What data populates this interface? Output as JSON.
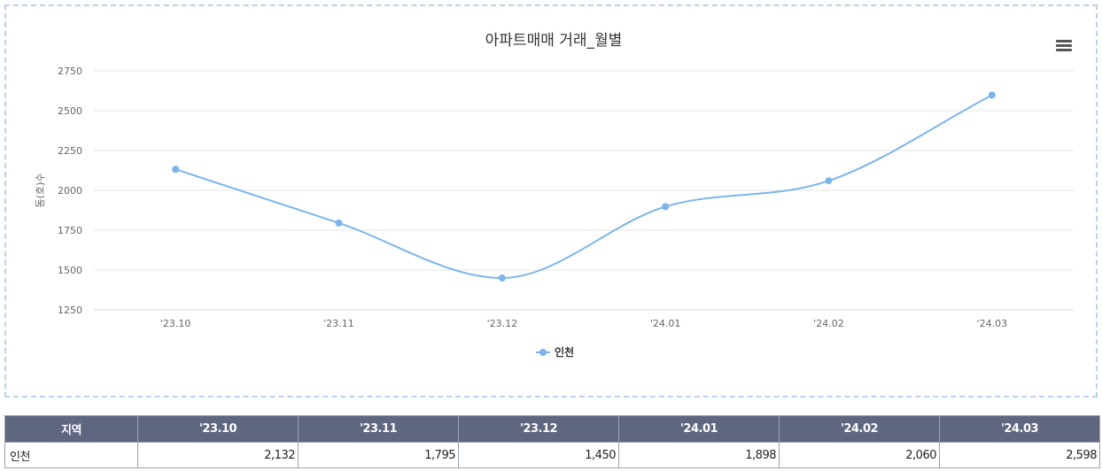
{
  "chart_data": {
    "type": "line",
    "title": "아파트매매 거래_월별",
    "ylabel": "동(호)수",
    "xlabel": "",
    "categories": [
      "'23.10",
      "'23.11",
      "'23.12",
      "'24.01",
      "'24.02",
      "'24.03"
    ],
    "series": [
      {
        "name": "인천",
        "values": [
          2132,
          1795,
          1450,
          1898,
          2060,
          2598
        ],
        "color": "#7cb5ec"
      }
    ],
    "yticks": [
      1250,
      1500,
      1750,
      2000,
      2250,
      2500,
      2750
    ],
    "ylim": [
      1250,
      2750
    ],
    "grid": true,
    "legend": "bottom-center",
    "smooth": true
  },
  "menu": {
    "icon": "hamburger-menu-icon"
  },
  "table": {
    "header_region": "지역",
    "headers": [
      "'23.10",
      "'23.11",
      "'23.12",
      "'24.01",
      "'24.02",
      "'24.03"
    ],
    "rows": [
      {
        "region": "인천",
        "values": [
          "2,132",
          "1,795",
          "1,450",
          "1,898",
          "2,060",
          "2,598"
        ]
      }
    ]
  },
  "colors": {
    "series": "#7cb5ec",
    "header_bg": "#5f6680",
    "grid": "#e6e6e6",
    "border": "#b9d3ee"
  }
}
